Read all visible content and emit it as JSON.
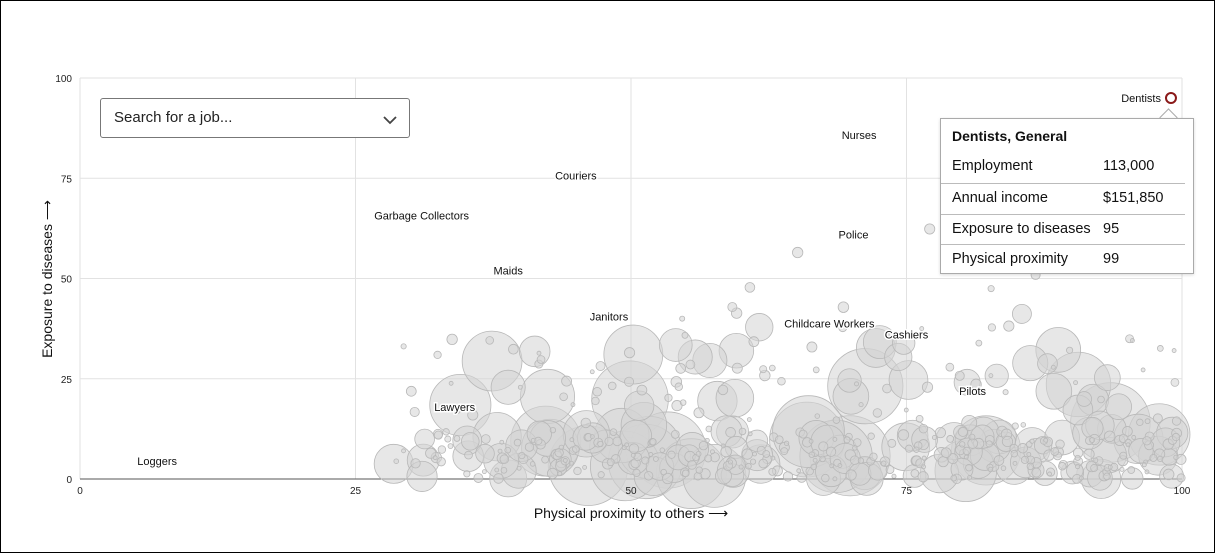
{
  "search": {
    "placeholder": "Search for a job..."
  },
  "tooltip": {
    "title": "Dentists, General",
    "rows": [
      {
        "label": "Employment",
        "value": "113,000"
      },
      {
        "label": "Annual income",
        "value": "$151,850"
      },
      {
        "label": "Exposure to diseases",
        "value": "95"
      },
      {
        "label": "Physical proximity",
        "value": "99"
      }
    ]
  },
  "chart_data": {
    "type": "scatter",
    "xlabel": "Physical proximity to others ⟶",
    "ylabel": "Exposure to diseases ⟶",
    "xlim": [
      0,
      100
    ],
    "ylim": [
      0,
      100
    ],
    "xticks": [
      0,
      25,
      50,
      75,
      100
    ],
    "yticks": [
      0,
      25,
      50,
      75,
      100
    ],
    "grid": true,
    "colors": {
      "bubble_fill": "#d4d4d4",
      "bubble_stroke": "#b8b8b8",
      "highlight_stroke": "#222222",
      "selected_stroke": "#8b1a1a",
      "grid": "#e2e2e2"
    },
    "labeled_points": [
      {
        "name": "Loggers",
        "x": 7,
        "y": 2,
        "size": 1
      },
      {
        "name": "Lawyers",
        "x": 34,
        "y": 14,
        "size": 35
      },
      {
        "name": "Garbage Collectors",
        "x": 31,
        "y": 63,
        "size": 5
      },
      {
        "name": "Couriers",
        "x": 45,
        "y": 73,
        "size": 5
      },
      {
        "name": "Maids",
        "x": 42,
        "y": 52,
        "size": 80
      },
      {
        "name": "Janitors",
        "x": 48,
        "y": 47,
        "size": 240
      },
      {
        "name": "Nurses",
        "x": 77,
        "y": 80,
        "size": 250
      },
      {
        "name": "Police",
        "x": 73,
        "y": 61,
        "size": 70
      },
      {
        "name": "Childcare Workers",
        "x": 68,
        "y": 35,
        "size": 60
      },
      {
        "name": "Cashiers",
        "x": 75,
        "y": 28,
        "size": 380
      },
      {
        "name": "Pilots",
        "x": 81,
        "y": 25,
        "size": 3
      },
      {
        "name": "Dentists",
        "x": 99,
        "y": 95,
        "size": 10
      }
    ],
    "selected": "Dentists"
  }
}
